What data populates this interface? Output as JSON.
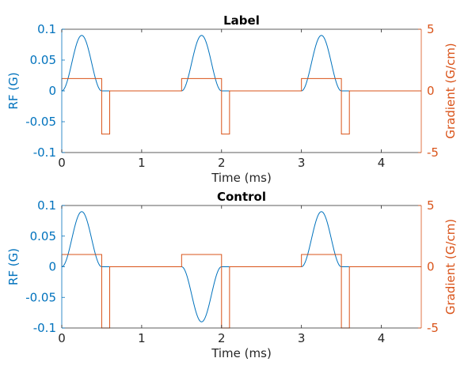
{
  "colors": {
    "rf": "#0072BD",
    "gradient": "#D95319",
    "axis": "#262626"
  },
  "chart_data": [
    {
      "type": "line",
      "title": "Label",
      "xlabel": "Time (ms)",
      "ylabel_left": "RF (G)",
      "ylabel_right": "Gradient (G/cm)",
      "xlim": [
        0,
        4.5
      ],
      "ylim_left": [
        -0.1,
        0.1
      ],
      "ylim_right": [
        -5,
        5
      ],
      "xticks": [
        "0",
        "1",
        "2",
        "3",
        "4"
      ],
      "yticks_left": [
        "-0.1",
        "-0.05",
        "0",
        "0.05",
        "0.1"
      ],
      "yticks_right": [
        "-5",
        "0",
        "5"
      ],
      "grid": false,
      "rf_pulses": [
        {
          "start": 0.0,
          "end": 0.5,
          "peak": 0.09
        },
        {
          "start": 1.5,
          "end": 2.0,
          "peak": 0.09
        },
        {
          "start": 3.0,
          "end": 3.5,
          "peak": 0.09
        }
      ],
      "gradient_steps": [
        {
          "x": 0.0,
          "y": 1.0
        },
        {
          "x": 0.5,
          "y": 0.0
        },
        {
          "x": 0.5,
          "y": -3.5
        },
        {
          "x": 0.6,
          "y": 0.0
        },
        {
          "x": 1.5,
          "y": 1.0
        },
        {
          "x": 2.0,
          "y": 0.0
        },
        {
          "x": 2.0,
          "y": -3.5
        },
        {
          "x": 2.1,
          "y": 0.0
        },
        {
          "x": 3.0,
          "y": 1.0
        },
        {
          "x": 3.5,
          "y": 0.0
        },
        {
          "x": 3.5,
          "y": -3.5
        },
        {
          "x": 3.6,
          "y": 0.0
        }
      ]
    },
    {
      "type": "line",
      "title": "Control",
      "xlabel": "Time (ms)",
      "ylabel_left": "RF (G)",
      "ylabel_right": "Gradient (G/cm)",
      "xlim": [
        0,
        4.5
      ],
      "ylim_left": [
        -0.1,
        0.1
      ],
      "ylim_right": [
        -5,
        5
      ],
      "xticks": [
        "0",
        "1",
        "2",
        "3",
        "4"
      ],
      "yticks_left": [
        "-0.1",
        "-0.05",
        "0",
        "0.05",
        "0.1"
      ],
      "yticks_right": [
        "-5",
        "0",
        "5"
      ],
      "grid": false,
      "rf_pulses": [
        {
          "start": 0.0,
          "end": 0.5,
          "peak": 0.09
        },
        {
          "start": 1.5,
          "end": 2.0,
          "peak": -0.09
        },
        {
          "start": 3.0,
          "end": 3.5,
          "peak": 0.09
        }
      ],
      "gradient_steps": [
        {
          "x": 0.0,
          "y": 1.0
        },
        {
          "x": 0.5,
          "y": 0.0
        },
        {
          "x": 0.5,
          "y": -5.0
        },
        {
          "x": 0.6,
          "y": 0.0
        },
        {
          "x": 1.5,
          "y": 1.0
        },
        {
          "x": 2.0,
          "y": 0.0
        },
        {
          "x": 2.0,
          "y": -5.0
        },
        {
          "x": 2.1,
          "y": 0.0
        },
        {
          "x": 3.0,
          "y": 1.0
        },
        {
          "x": 3.5,
          "y": 0.0
        },
        {
          "x": 3.5,
          "y": -5.0
        },
        {
          "x": 3.6,
          "y": 0.0
        }
      ]
    }
  ]
}
